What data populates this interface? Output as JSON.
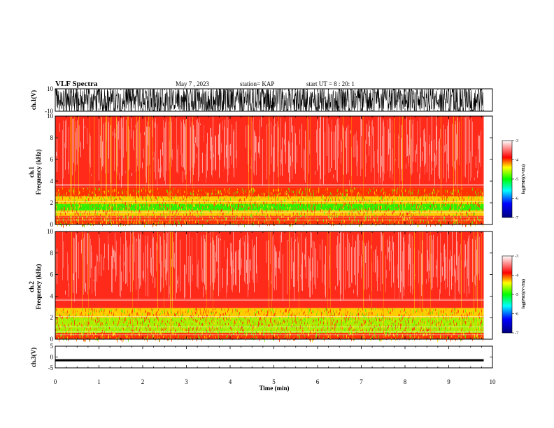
{
  "header": {
    "title": "VLF Spectra",
    "date": "May 7 , 2023",
    "station": "station= KAP",
    "start": "start UT =  8 : 20: 1"
  },
  "colors": {
    "low": "#0000aa",
    "mid_low": "#00ccff",
    "mid": "#44dd00",
    "mid_high": "#ffee00",
    "high": "#ff2200",
    "very_high": "#ffffff"
  },
  "chart_data": [
    {
      "type": "line",
      "panel": "ch1-waveform",
      "ylabel": "ch.1(V)",
      "ylim": [
        -10,
        10
      ],
      "yticks": [
        "10",
        "-10"
      ],
      "xlim": [
        0,
        10
      ],
      "description_values": {
        "amplitude_min": -10,
        "amplitude_max": 10
      }
    },
    {
      "type": "heatmap",
      "panel": "ch1-spectrogram",
      "ylabel": "ch.1 Frequency (kHz)",
      "ylabel_channel": "ch.1",
      "ylabel_quantity": "Frequency (kHz)",
      "ylim": [
        0,
        10
      ],
      "yticks": [
        "0",
        "2",
        "4",
        "6",
        "8",
        "10"
      ],
      "xlim": [
        0,
        10
      ],
      "data_end_min": 9.8,
      "bands": [
        {
          "f_lo": 0.0,
          "f_hi": 0.8,
          "level": -4.0
        },
        {
          "f_lo": 0.8,
          "f_hi": 1.3,
          "level": -4.6
        },
        {
          "f_lo": 1.3,
          "f_hi": 1.9,
          "level": -5.0
        },
        {
          "f_lo": 1.9,
          "f_hi": 2.6,
          "level": -4.5
        },
        {
          "f_lo": 2.6,
          "f_hi": 3.4,
          "level": -4.3
        },
        {
          "f_lo": 3.4,
          "f_hi": 10.0,
          "level": -3.7
        }
      ],
      "colorbar": {
        "label": "log(PSD)(V²/Hz)",
        "range": [
          -7,
          -3
        ],
        "ticks": [
          "-3",
          "-4",
          "-5",
          "-6",
          "-7"
        ]
      }
    },
    {
      "type": "heatmap",
      "panel": "ch2-spectrogram",
      "ylabel": "ch.2 Frequency (kHz)",
      "ylabel_channel": "ch.2",
      "ylabel_quantity": "Frequency (kHz)",
      "ylim": [
        0,
        10
      ],
      "yticks": [
        "0",
        "2",
        "4",
        "6",
        "8",
        "10"
      ],
      "xlim": [
        0,
        10
      ],
      "data_end_min": 9.8,
      "bands": [
        {
          "f_lo": 0.0,
          "f_hi": 0.6,
          "level": -4.0
        },
        {
          "f_lo": 0.6,
          "f_hi": 2.0,
          "level": -4.9
        },
        {
          "f_lo": 2.0,
          "f_hi": 2.9,
          "level": -4.4
        },
        {
          "f_lo": 2.9,
          "f_hi": 10.0,
          "level": -3.7
        }
      ],
      "colorbar": {
        "label": "log(PSD)(V²/Hz)",
        "range": [
          -7,
          -3
        ],
        "ticks": [
          "-3",
          "-4",
          "-5",
          "-6",
          "-7"
        ]
      }
    },
    {
      "type": "line",
      "panel": "ch3-waveform",
      "ylabel": "ch.3(V)",
      "ylim": [
        -5,
        5
      ],
      "yticks": [
        "5",
        "0",
        "-5"
      ],
      "xlim": [
        0,
        10
      ],
      "description_values": {
        "amplitude_min": -0.5,
        "amplitude_max": 0.5,
        "offset": -1.5
      }
    }
  ],
  "xaxis": {
    "label": "Time (min)",
    "ticks": [
      "0",
      "1",
      "2",
      "3",
      "4",
      "5",
      "6",
      "7",
      "8",
      "9",
      "10"
    ]
  }
}
